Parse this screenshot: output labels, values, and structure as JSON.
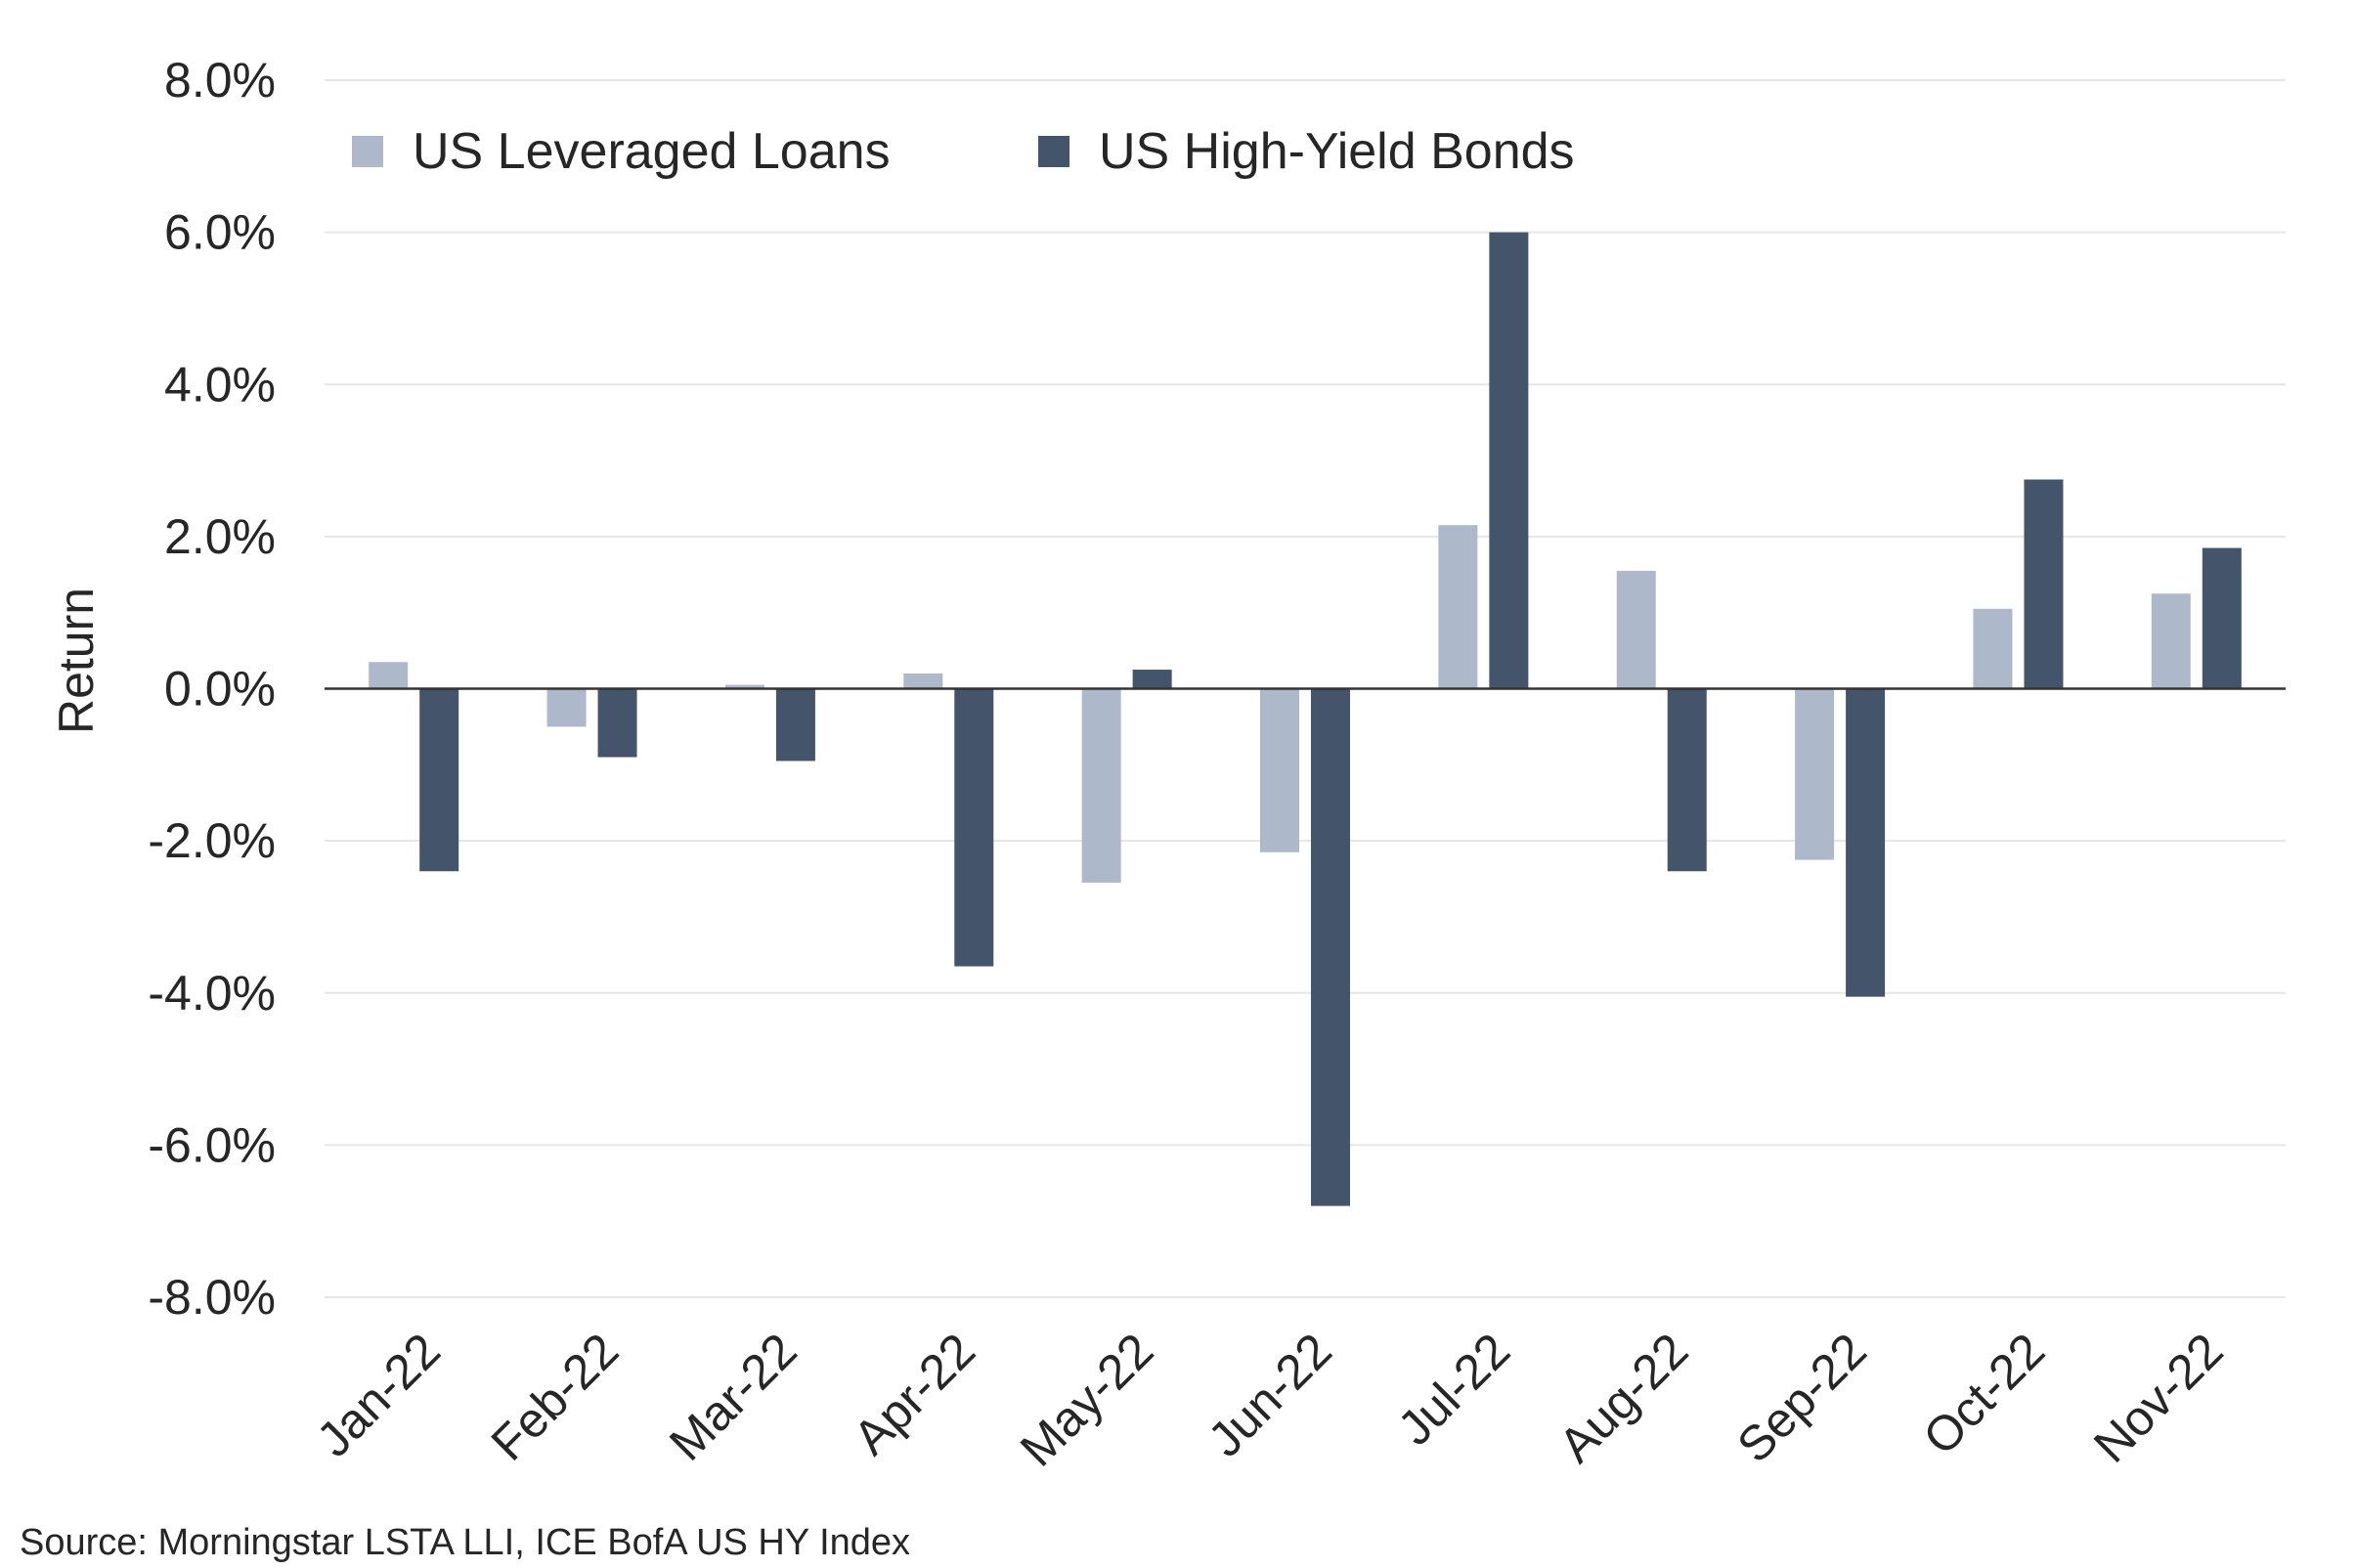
{
  "chart_data": {
    "type": "bar",
    "categories": [
      "Jan-22",
      "Feb-22",
      "Mar-22",
      "Apr-22",
      "May-22",
      "Jun-22",
      "Jul-22",
      "Aug-22",
      "Sep-22",
      "Oct-22",
      "Nov-22"
    ],
    "series": [
      {
        "name": "US Leveraged Loans",
        "color": "#adb9ca",
        "values": [
          0.35,
          -0.5,
          0.05,
          0.2,
          -2.55,
          -2.15,
          2.15,
          1.55,
          -2.25,
          1.05,
          1.25
        ]
      },
      {
        "name": "US High-Yield Bonds",
        "color": "#44546a",
        "values": [
          -2.4,
          -0.9,
          -0.95,
          -3.65,
          0.25,
          -6.8,
          6.0,
          -2.4,
          -4.05,
          2.75,
          1.85
        ]
      }
    ],
    "ylabel": "Return",
    "ylim": [
      -8,
      8
    ],
    "y_ticks": [
      "8.0%",
      "6.0%",
      "4.0%",
      "2.0%",
      "0.0%",
      "-2.0%",
      "-4.0%",
      "-6.0%",
      "-8.0%"
    ],
    "y_tick_values": [
      8,
      6,
      4,
      2,
      0,
      -2,
      -4,
      -6,
      -8
    ],
    "grid": true,
    "legend_position": "top-left",
    "source": "Source: Morningstar LSTA LLI, ICE BofA US HY Index"
  }
}
